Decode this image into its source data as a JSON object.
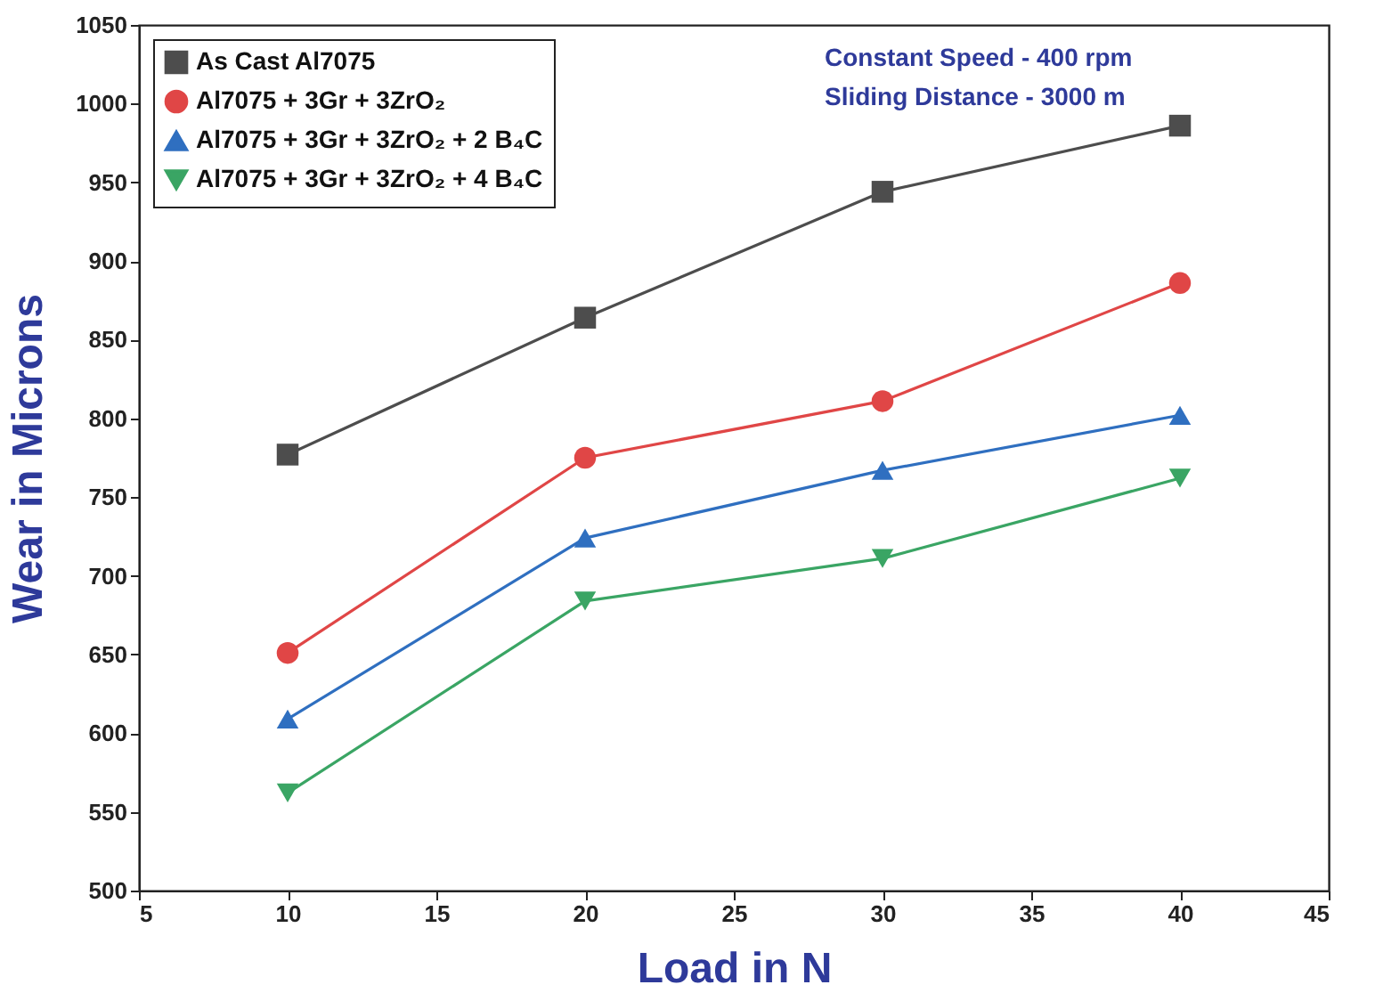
{
  "chart_data": {
    "type": "line",
    "xlabel": "Load in N",
    "ylabel": "Wear in Microns",
    "x": [
      10,
      20,
      30,
      40
    ],
    "series": [
      {
        "name": "As Cast Al7075",
        "color": "#4d4d4d",
        "marker": "square",
        "values": [
          777,
          864,
          944,
          986
        ]
      },
      {
        "name": "Al7075 + 3Gr + 3ZrO₂",
        "color": "#e04646",
        "marker": "circle",
        "values": [
          651,
          775,
          811,
          886
        ]
      },
      {
        "name": "Al7075 + 3Gr + 3ZrO₂ + 2 B₄C",
        "color": "#2f6fc0",
        "marker": "triangle",
        "values": [
          609,
          724,
          767,
          802
        ]
      },
      {
        "name": "Al7075 + 3Gr + 3ZrO₂ + 4 B₄C",
        "color": "#3aa564",
        "marker": "triangle-down",
        "values": [
          562,
          684,
          711,
          762
        ]
      }
    ],
    "xlim": [
      5,
      45
    ],
    "xticks": [
      5,
      10,
      15,
      20,
      25,
      30,
      35,
      40,
      45
    ],
    "ylim": [
      500,
      1050
    ],
    "yticks": [
      500,
      550,
      600,
      650,
      700,
      750,
      800,
      850,
      900,
      950,
      1000,
      1050
    ],
    "legend": "top left",
    "grid": false,
    "annotations": [
      "Constant Speed   -  400 rpm",
      "Sliding Distance  -  3000 m"
    ]
  }
}
